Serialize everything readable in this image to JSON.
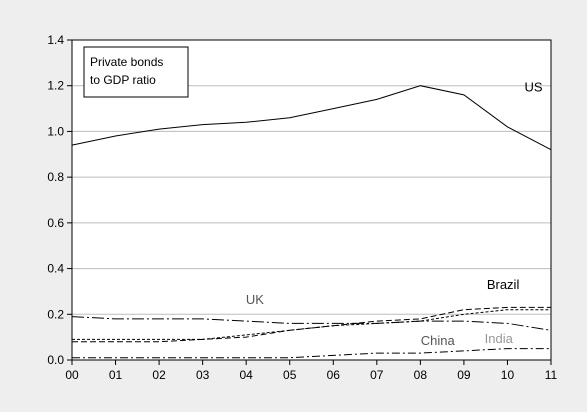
{
  "chart_data": {
    "type": "line",
    "title": "",
    "xlabel": "",
    "ylabel": "",
    "legend_box": {
      "lines": [
        "Private bonds",
        "to GDP ratio"
      ],
      "placement": "top-left"
    },
    "x": [
      0,
      1,
      2,
      3,
      4,
      5,
      6,
      7,
      8,
      9,
      10,
      11
    ],
    "x_tick_labels": [
      "00",
      "01",
      "02",
      "03",
      "04",
      "05",
      "06",
      "07",
      "08",
      "09",
      "10",
      "11"
    ],
    "xlim": [
      0,
      11
    ],
    "ylim": [
      0,
      1.4
    ],
    "y_ticks": [
      0.0,
      0.2,
      0.4,
      0.6,
      0.8,
      1.0,
      1.2,
      1.4
    ],
    "y_tick_labels": [
      "0.0",
      "0.2",
      "0.4",
      "0.6",
      "0.8",
      "1.0",
      "1.2",
      "1.4"
    ],
    "grid": "horizontal",
    "series": [
      {
        "name": "US",
        "values": [
          0.94,
          0.98,
          1.01,
          1.03,
          1.04,
          1.06,
          1.1,
          1.14,
          1.2,
          1.16,
          1.02,
          0.92
        ],
        "color": "#000000",
        "dash": "none",
        "label_color": "#000000"
      },
      {
        "name": "UK",
        "values": [
          0.19,
          0.18,
          0.18,
          0.18,
          0.17,
          0.16,
          0.16,
          0.16,
          0.17,
          0.17,
          0.16,
          0.13
        ],
        "color": "#000000",
        "dash": "long-dash-dot",
        "label_color": "#555555"
      },
      {
        "name": "Brazil",
        "values": [
          0.08,
          0.08,
          0.08,
          0.09,
          0.1,
          0.13,
          0.15,
          0.17,
          0.18,
          0.22,
          0.23,
          0.23
        ],
        "color": "#000000",
        "dash": "dash",
        "label_color": "#000000"
      },
      {
        "name": "India",
        "values": [
          0.09,
          0.09,
          0.09,
          0.09,
          0.11,
          0.13,
          0.15,
          0.16,
          0.17,
          0.2,
          0.22,
          0.22
        ],
        "color": "#000000",
        "dash": "short-dash",
        "label_color": "#999999"
      },
      {
        "name": "China",
        "values": [
          0.01,
          0.01,
          0.01,
          0.01,
          0.01,
          0.01,
          0.02,
          0.03,
          0.03,
          0.04,
          0.05,
          0.05
        ],
        "color": "#000000",
        "dash": "dash-dot",
        "label_color": "#555555"
      }
    ]
  }
}
